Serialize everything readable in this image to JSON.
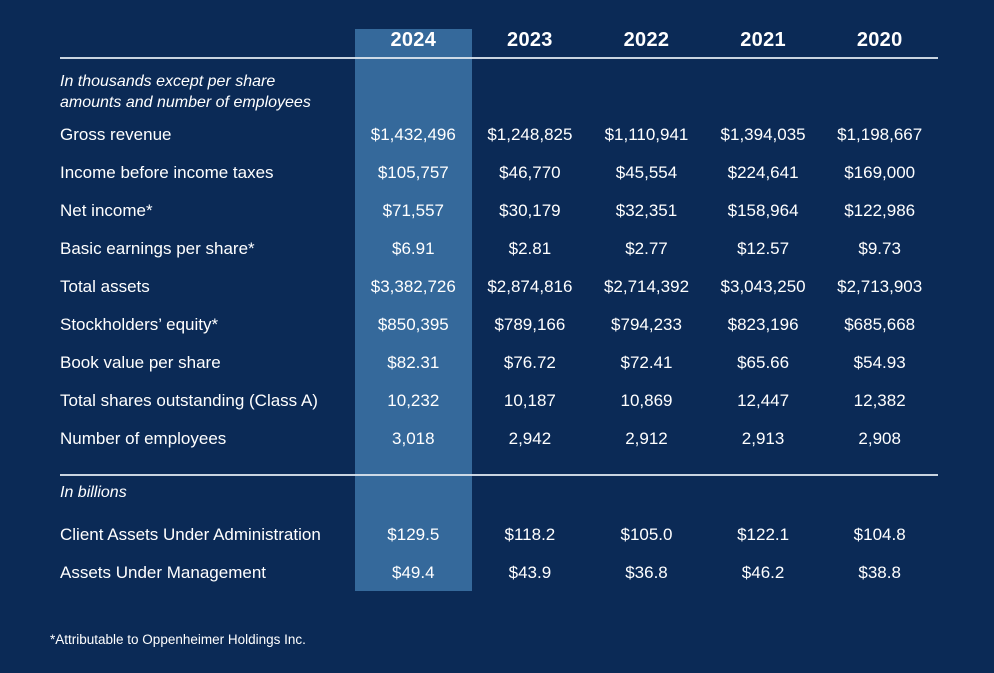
{
  "colors": {
    "background": "#0B2A56",
    "highlight_column": "#35699B",
    "rule_line": "#DEE7F0",
    "text": "#FFFFFF"
  },
  "table": {
    "years": [
      "2024",
      "2023",
      "2022",
      "2021",
      "2020"
    ],
    "highlight_year": "2024",
    "note_lines": [
      "In thousands except per share",
      "amounts and number of employees"
    ],
    "rows": [
      {
        "label": "Gross revenue",
        "values": [
          "$1,432,496",
          "$1,248,825",
          "$1,110,941",
          "$1,394,035",
          "$1,198,667"
        ]
      },
      {
        "label": "Income before income taxes",
        "values": [
          "$105,757",
          "$46,770",
          "$45,554",
          "$224,641",
          "$169,000"
        ]
      },
      {
        "label": "Net income*",
        "values": [
          "$71,557",
          "$30,179",
          "$32,351",
          "$158,964",
          "$122,986"
        ]
      },
      {
        "label": "Basic earnings per share*",
        "values": [
          "$6.91",
          "$2.81",
          "$2.77",
          "$12.57",
          "$9.73"
        ]
      },
      {
        "label": "Total assets",
        "values": [
          "$3,382,726",
          "$2,874,816",
          "$2,714,392",
          "$3,043,250",
          "$2,713,903"
        ]
      },
      {
        "label": "Stockholders’ equity*",
        "values": [
          "$850,395",
          "$789,166",
          "$794,233",
          "$823,196",
          "$685,668"
        ]
      },
      {
        "label": "Book value per share",
        "values": [
          "$82.31",
          "$76.72",
          "$72.41",
          "$65.66",
          "$54.93"
        ]
      },
      {
        "label": "Total shares outstanding (Class A)",
        "values": [
          "10,232",
          "10,187",
          "10,869",
          "12,447",
          "12,382"
        ]
      },
      {
        "label": "Number of employees",
        "values": [
          "3,018",
          "2,942",
          "2,912",
          "2,913",
          "2,908"
        ]
      }
    ],
    "section2_note": "In billions",
    "rows2": [
      {
        "label": "Client Assets Under Administration",
        "values": [
          "$129.5",
          "$118.2",
          "$105.0",
          "$122.1",
          "$104.8"
        ]
      },
      {
        "label": "Assets Under Management",
        "values": [
          "$49.4",
          "$43.9",
          "$36.8",
          "$46.2",
          "$38.8"
        ]
      }
    ],
    "footnote": "*Attributable to Oppenheimer Holdings Inc."
  }
}
